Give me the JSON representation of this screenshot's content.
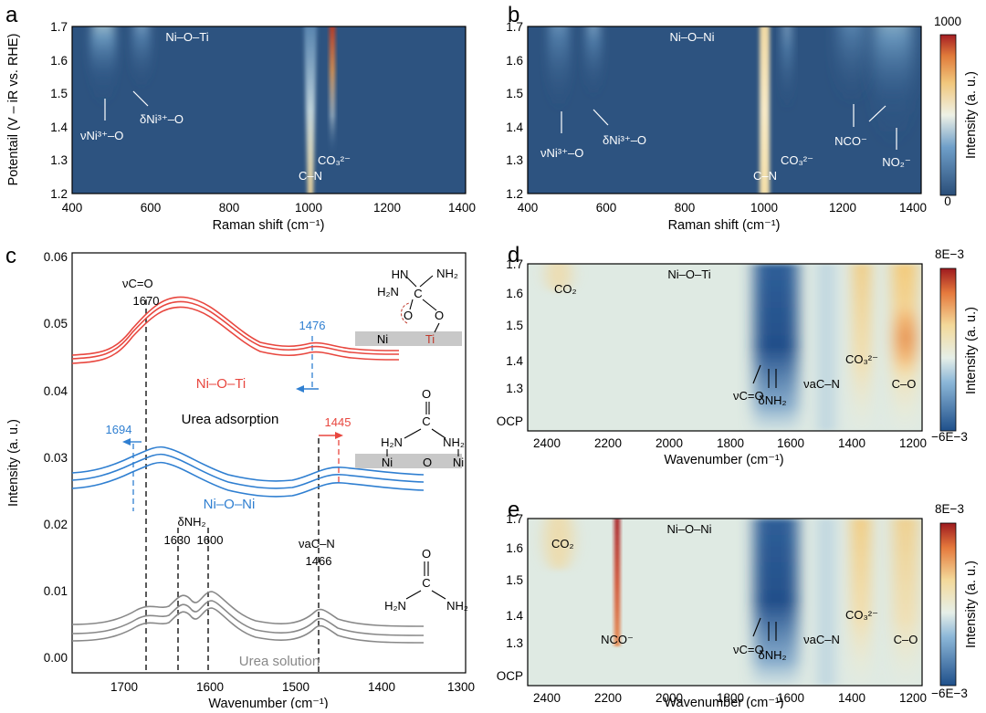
{
  "panels": {
    "a": {
      "letter": "a",
      "title": "Ni–O–Ti",
      "xlabel": "Raman shift (cm⁻¹)",
      "ylabel": "Potentail (V – iR vs. RHE)",
      "xticks": [
        "400",
        "600",
        "800",
        "1000",
        "1200",
        "1400"
      ],
      "yticks": [
        "1.2",
        "1.3",
        "1.4",
        "1.5",
        "1.6",
        "1.7"
      ],
      "ann": {
        "nu": "νNi³⁺–O",
        "delta": "δNi³⁺–O",
        "cn": "C–N",
        "co3": "CO₃²⁻"
      }
    },
    "b": {
      "letter": "b",
      "title": "Ni–O–Ni",
      "xlabel": "Raman shift (cm⁻¹)",
      "xticks": [
        "400",
        "600",
        "800",
        "1000",
        "1200",
        "1400"
      ],
      "yticks": [
        "1.2",
        "1.3",
        "1.4",
        "1.5",
        "1.6",
        "1.7"
      ],
      "ann": {
        "nu": "νNi³⁺–O",
        "delta": "δNi³⁺–O",
        "cn": "C–N",
        "co3": "CO₃²⁻",
        "nco": "NCO⁻",
        "no2": "NO₂⁻"
      },
      "colorbar": {
        "label": "Intensity (a. u.)",
        "max": "1000",
        "min": "0"
      }
    },
    "c": {
      "letter": "c",
      "xlabel": "Wavenumber (cm⁻¹)",
      "ylabel": "Intensity (a. u.)",
      "xticks": [
        "1700",
        "1600",
        "1500",
        "1400",
        "1300"
      ],
      "yticks": [
        "0.00",
        "0.01",
        "0.02",
        "0.03",
        "0.04",
        "0.05",
        "0.06"
      ],
      "labels": {
        "vco": "νC=O",
        "v1670": "1670",
        "v1476": "1476",
        "v1694": "1694",
        "v1445": "1445",
        "nioti": "Ni–O–Ti",
        "nioni": "Ni–O–Ni",
        "urea_ads": "Urea adsorption",
        "dnh2": "δNH₂",
        "v1630": "1630",
        "v1600": "1600",
        "vacn": "νaC–N",
        "v1466": "1466",
        "urea_sol": "Urea solution",
        "s_ni": "Ni",
        "s_ti": "Ti",
        "s_o": "O",
        "s_c": "C",
        "s_n": "N",
        "s_h2n": "H₂N",
        "s_nh2": "NH₂",
        "s_hn": "HN"
      }
    },
    "d": {
      "letter": "d",
      "title": "Ni–O–Ti",
      "xlabel": "Wavenumber (cm⁻¹)",
      "xticks": [
        "2400",
        "2200",
        "2000",
        "1800",
        "1600",
        "1400",
        "1200"
      ],
      "yticks": [
        "OCP",
        "1.3",
        "1.4",
        "1.5",
        "1.6",
        "1.7"
      ],
      "ann": {
        "co2": "CO₂",
        "vco": "νC=O",
        "dnh2": "δNH₂",
        "vacn": "νaC–N",
        "co3": "CO₃²⁻",
        "co": "C–O"
      },
      "colorbar": {
        "label": "Intensity (a. u.)",
        "max": "8E−3",
        "min": "−6E−3"
      }
    },
    "e": {
      "letter": "e",
      "title": "Ni–O–Ni",
      "xlabel": "Wavenumber (cm⁻¹)",
      "xticks": [
        "2400",
        "2200",
        "2000",
        "1800",
        "1600",
        "1400",
        "1200"
      ],
      "yticks": [
        "OCP",
        "1.3",
        "1.4",
        "1.5",
        "1.6",
        "1.7"
      ],
      "ann": {
        "co2": "CO₂",
        "nco": "NCO⁻",
        "vco": "νC=O",
        "dnh2": "δNH₂",
        "vacn": "νaC–N",
        "co3": "CO₃²⁻",
        "co": "C–O"
      },
      "colorbar": {
        "label": "Intensity (a. u.)",
        "max": "8E−3",
        "min": "−6E−3"
      }
    }
  },
  "chart_data": [
    {
      "panel": "a",
      "type": "heatmap",
      "title": "Ni–O–Ti",
      "xlim": [
        400,
        1400
      ],
      "ylim": [
        1.2,
        1.7
      ],
      "bands": [
        {
          "x": 480,
          "label": "νNi³⁺–O"
        },
        {
          "x": 560,
          "label": "δNi³⁺–O"
        },
        {
          "x": 1005,
          "label": "C–N"
        },
        {
          "x": 1062,
          "label": "CO₃²⁻"
        }
      ],
      "colorscale": {
        "min": 0,
        "max": 1000
      }
    },
    {
      "panel": "b",
      "type": "heatmap",
      "title": "Ni–O–Ni",
      "xlim": [
        400,
        1400
      ],
      "ylim": [
        1.2,
        1.7
      ],
      "bands": [
        {
          "x": 480,
          "label": "νNi³⁺–O"
        },
        {
          "x": 560,
          "label": "δNi³⁺–O"
        },
        {
          "x": 1005,
          "label": "C–N"
        },
        {
          "x": 1062,
          "label": "CO₃²⁻"
        },
        {
          "x": 1225,
          "label": "NCO⁻"
        },
        {
          "x": 1330,
          "label": "NO₂⁻"
        }
      ],
      "colorscale": {
        "min": 0,
        "max": 1000
      }
    },
    {
      "panel": "c",
      "type": "line",
      "xlim": [
        1750,
        1300
      ],
      "ylim": [
        0,
        0.06
      ],
      "series": [
        {
          "name": "Ni–O–Ti",
          "color": "#e8473f",
          "peaks": [
            1640,
            1476
          ]
        },
        {
          "name": "Ni–O–Ni",
          "color": "#2f7fd1",
          "peaks": [
            1645,
            1445
          ]
        },
        {
          "name": "Urea solution",
          "color": "#888888",
          "peaks": [
            1670,
            1630,
            1600,
            1466
          ]
        }
      ]
    },
    {
      "panel": "d",
      "type": "heatmap",
      "title": "Ni–O–Ti",
      "xlim": [
        2480,
        1180
      ],
      "ylim": [
        "OCP",
        1.7
      ],
      "bands": [
        {
          "x": 2350,
          "label": "CO₂"
        },
        {
          "x": 1670,
          "label": "νC=O"
        },
        {
          "x": 1620,
          "label": "δNH₂"
        },
        {
          "x": 1466,
          "label": "νaC–N"
        },
        {
          "x": 1385,
          "label": "CO₃²⁻"
        },
        {
          "x": 1215,
          "label": "C–O"
        }
      ],
      "colorscale": {
        "min": -0.006,
        "max": 0.008
      }
    },
    {
      "panel": "e",
      "type": "heatmap",
      "title": "Ni–O–Ni",
      "xlim": [
        2480,
        1180
      ],
      "ylim": [
        "OCP",
        1.7
      ],
      "bands": [
        {
          "x": 2350,
          "label": "CO₂"
        },
        {
          "x": 2165,
          "label": "NCO⁻"
        },
        {
          "x": 1670,
          "label": "νC=O"
        },
        {
          "x": 1620,
          "label": "δNH₂"
        },
        {
          "x": 1466,
          "label": "νaC–N"
        },
        {
          "x": 1385,
          "label": "CO₃²⁻"
        },
        {
          "x": 1215,
          "label": "C–O"
        }
      ],
      "colorscale": {
        "min": -0.006,
        "max": 0.008
      }
    }
  ]
}
